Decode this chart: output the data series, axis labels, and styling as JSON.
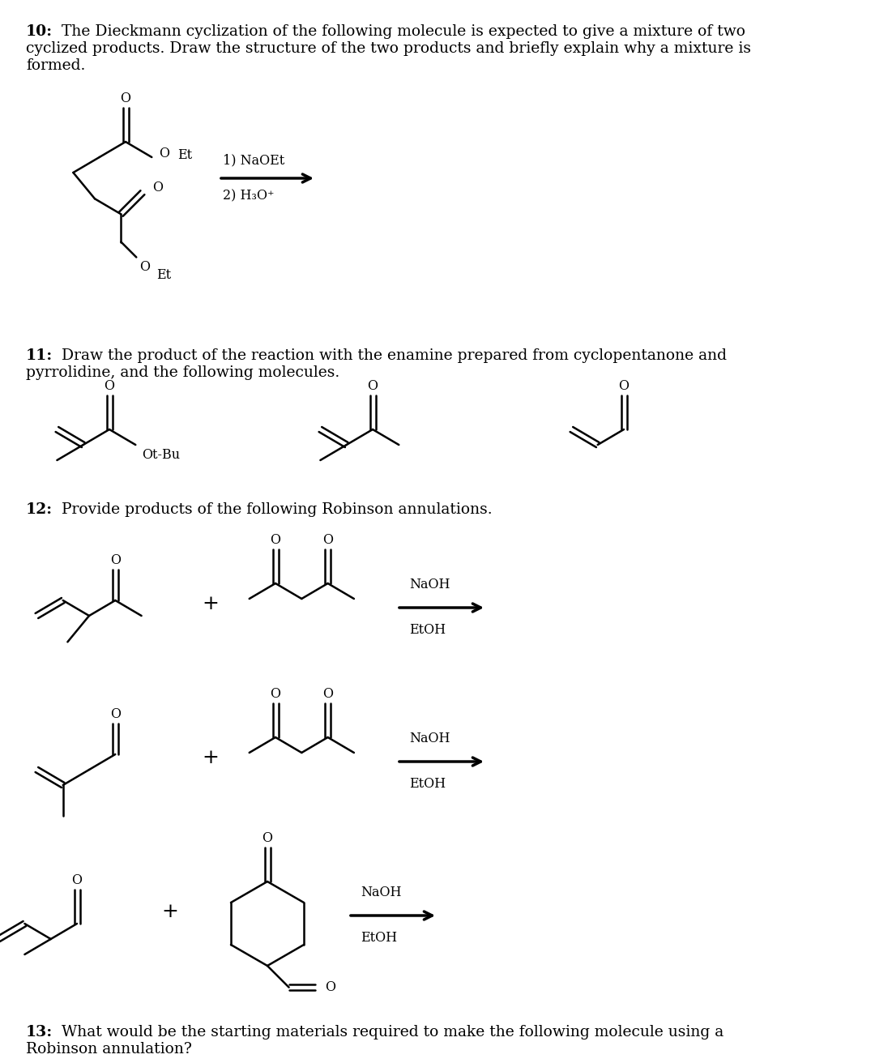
{
  "bg": "#ffffff",
  "fw": 10.8,
  "fh": 13.12,
  "dpi": 100,
  "q10_bold": "10:",
  "q10_rest": " The Dieckmann cyclization of the following molecule is expected to give a mixture of two",
  "q10_l2": "cyclized products. Draw the structure of the two products and briefly explain why a mixture is",
  "q10_l3": "formed.",
  "q11_bold": "11:",
  "q11_rest": " Draw the product of the reaction with the enamine prepared from cyclopentanone and",
  "q11_l2": "pyrrolidine, and the following molecules.",
  "q12_bold": "12:",
  "q12_rest": " Provide products of the following Robinson annulations.",
  "q13_bold": "13:",
  "q13_rest": " What would be the starting materials required to make the following molecule using a",
  "q13_l2": "Robinson annulation?",
  "r1": "1) NaOEt",
  "r2": "2) H₃O⁺",
  "naoh": "NaOH",
  "etoh": "EtOH",
  "otbu": "Ot-Bu"
}
